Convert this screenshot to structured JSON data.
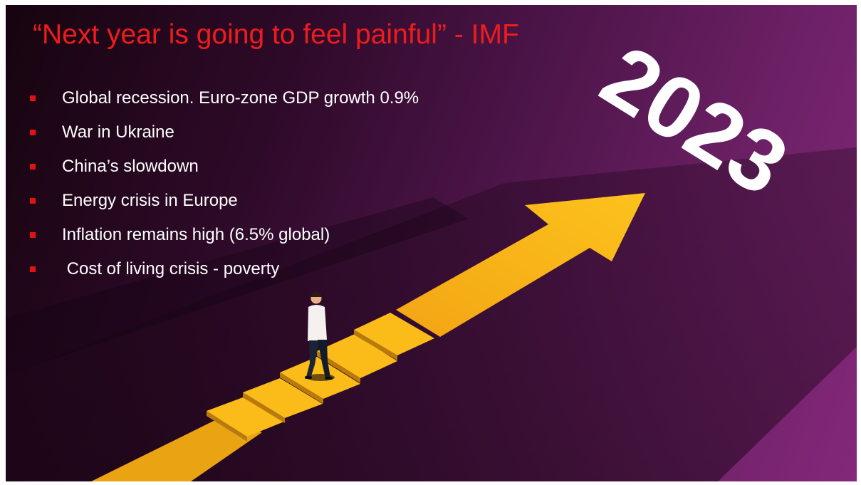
{
  "slide": {
    "title": "“Next year is going to feel painful” - IMF",
    "bullets": [
      "Global recession. Euro-zone GDP growth 0.9%",
      "War in Ukraine",
      "China’s slowdown",
      "Energy crisis in Europe",
      "Inflation remains high (6.5% global)",
      " Cost of living crisis - poverty"
    ],
    "year_graphic": "2023"
  },
  "colors": {
    "title": "#ee1c1c",
    "bullet_marker": "#e31212",
    "arrow": "#f7b516",
    "year": "#ffffff"
  },
  "icons": [
    "square-bullet-icon",
    "arrow-graphic",
    "person-figure"
  ]
}
